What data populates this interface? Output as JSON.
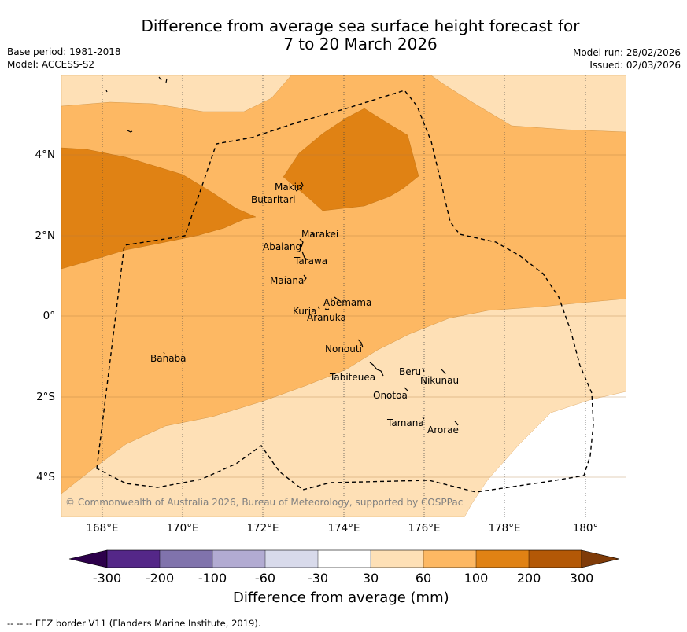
{
  "title_line1": "Difference from average sea surface height forecast for",
  "title_line2": "7 to 20 March 2026",
  "meta_left": {
    "base_period": "Base period: 1981-2018",
    "model": "Model: ACCESS-S2"
  },
  "meta_right": {
    "model_run": "Model run: 28/02/2026",
    "issued": "Issued: 02/03/2026"
  },
  "lat_labels": [
    "4°N",
    "2°N",
    "0°",
    "2°S",
    "4°S"
  ],
  "lon_labels": [
    "168°E",
    "170°E",
    "172°E",
    "174°E",
    "176°E",
    "178°E",
    "180°"
  ],
  "credit": "© Commonwealth of Australia 2026, Bureau of Meteorology, supported by COSPPac",
  "places": {
    "makin": "Makin",
    "butaritari": "Butaritari",
    "marakei": "Marakei",
    "abaiang": "Abaiang",
    "tarawa": "Tarawa",
    "maiana": "Maiana",
    "abemama": "Abemama",
    "kuria": "Kuria",
    "aranuka": "Aranuka",
    "nonouti": "Nonouti",
    "banaba": "Banaba",
    "beru": "Beru",
    "nikunau": "Nikunau",
    "tabiteuea": "Tabiteuea",
    "onotoa": "Onotoa",
    "tamana": "Tamana",
    "arorae": "Arorae"
  },
  "colorbar": {
    "title": "Difference from average (mm)",
    "ticks": [
      "-300",
      "-200",
      "-100",
      "-60",
      "-30",
      "30",
      "60",
      "100",
      "200",
      "300"
    ],
    "colors": {
      "below_min": "#2d004b",
      "c1": "#542788",
      "c2": "#8073ac",
      "c3": "#b2abd2",
      "c4": "#d8daeb",
      "c5": "#ffffff",
      "c6": "#fee0b6",
      "c7": "#fdb863",
      "c8": "#e08214",
      "c9": "#b35806",
      "above_max": "#7f3b08"
    }
  },
  "footnote": "--  --  -- EEZ border V11 (Flanders Marine Institute, 2019)."
}
